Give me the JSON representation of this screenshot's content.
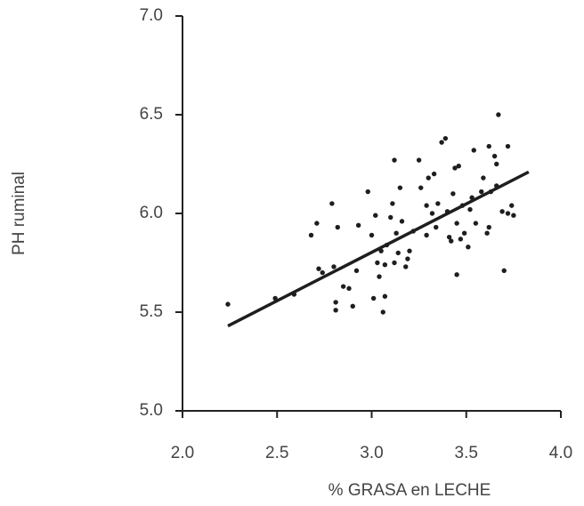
{
  "chart_data": {
    "type": "scatter",
    "x_label": "% GRASA en LECHE",
    "y_label": "PH ruminal",
    "xlim": [
      2.0,
      4.0
    ],
    "ylim": [
      5.0,
      7.0
    ],
    "xticks": [
      {
        "value": 2.0,
        "label": "2.0"
      },
      {
        "value": 2.5,
        "label": "2.5"
      },
      {
        "value": 3.0,
        "label": "3.0"
      },
      {
        "value": 3.5,
        "label": "3.5"
      },
      {
        "value": 4.0,
        "label": "4.0"
      }
    ],
    "yticks": [
      {
        "value": 5.0,
        "label": "5.0"
      },
      {
        "value": 5.5,
        "label": "5.5"
      },
      {
        "value": 6.0,
        "label": "6.0"
      },
      {
        "value": 6.5,
        "label": "6.5"
      },
      {
        "value": 7.0,
        "label": "7.0"
      }
    ],
    "color": "#1e1e1e",
    "x": [
      2.24,
      2.49,
      2.59,
      2.68,
      2.71,
      2.72,
      2.74,
      2.79,
      2.8,
      2.81,
      2.81,
      2.82,
      2.85,
      2.88,
      2.9,
      2.92,
      2.93,
      2.98,
      3.0,
      3.01,
      3.02,
      3.03,
      3.04,
      3.05,
      3.06,
      3.07,
      3.07,
      3.08,
      3.1,
      3.11,
      3.12,
      3.12,
      3.13,
      3.14,
      3.15,
      3.16,
      3.18,
      3.19,
      3.2,
      3.22,
      3.25,
      3.26,
      3.29,
      3.29,
      3.3,
      3.32,
      3.33,
      3.34,
      3.35,
      3.37,
      3.39,
      3.4,
      3.41,
      3.42,
      3.43,
      3.44,
      3.45,
      3.45,
      3.46,
      3.47,
      3.48,
      3.49,
      3.51,
      3.52,
      3.53,
      3.54,
      3.55,
      3.58,
      3.59,
      3.61,
      3.62,
      3.62,
      3.63,
      3.65,
      3.66,
      3.67,
      3.69,
      3.7,
      3.72,
      3.72,
      3.74,
      3.75,
      3.66
    ],
    "y": [
      5.54,
      5.57,
      5.59,
      5.89,
      5.95,
      5.72,
      5.7,
      6.05,
      5.73,
      5.55,
      5.51,
      5.93,
      5.63,
      5.62,
      5.53,
      5.71,
      5.94,
      6.11,
      5.89,
      5.57,
      5.99,
      5.75,
      5.68,
      5.81,
      5.5,
      5.74,
      5.58,
      5.84,
      5.98,
      6.05,
      6.27,
      5.75,
      5.9,
      5.8,
      6.13,
      5.96,
      5.73,
      5.77,
      5.81,
      5.91,
      6.27,
      6.13,
      6.04,
      5.89,
      6.18,
      6.0,
      6.2,
      5.93,
      6.05,
      6.36,
      6.38,
      6.01,
      5.88,
      5.86,
      6.1,
      6.23,
      5.95,
      5.69,
      6.24,
      5.87,
      6.04,
      5.9,
      5.83,
      6.02,
      6.08,
      6.32,
      5.95,
      6.11,
      6.18,
      5.9,
      6.34,
      5.93,
      6.11,
      6.29,
      6.14,
      6.5,
      6.01,
      5.71,
      6.34,
      6.0,
      6.04,
      5.99,
      6.25
    ],
    "regression_line": {
      "x": [
        2.24,
        3.83
      ],
      "y": [
        5.43,
        6.21
      ]
    }
  }
}
